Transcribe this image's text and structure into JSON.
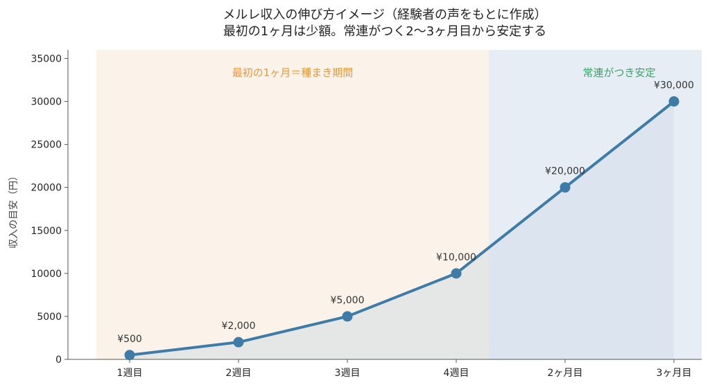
{
  "chart_data": {
    "type": "line",
    "title_line1": "メルレ収入の伸び方イメージ（経験者の声をもとに作成）",
    "title_line2": "最初の1ヶ月は少額。常連がつく2〜3ヶ月目から安定する",
    "ylabel": "収入の目安（円）",
    "categories": [
      "1週目",
      "2週目",
      "3週目",
      "4週目",
      "2ヶ月目",
      "3ヶ月目"
    ],
    "values": [
      500,
      2000,
      5000,
      10000,
      20000,
      30000
    ],
    "data_labels": [
      "¥500",
      "¥2,000",
      "¥5,000",
      "¥10,000",
      "¥20,000",
      "¥30,000"
    ],
    "ylim": [
      0,
      36000
    ],
    "yticks": [
      0,
      5000,
      10000,
      15000,
      20000,
      25000,
      30000,
      35000
    ],
    "annotations": {
      "seed_period": "最初の1ヶ月＝種まき期間",
      "stable_period": "常連がつき安定"
    },
    "colors": {
      "line": "#3E7BA6",
      "seed_region": "#FBF3EA",
      "stable_region": "#E6EDF5",
      "under_fill_seed": "#E5E7E6",
      "orange_text": "#E8963C",
      "green_text": "#3FA06A"
    }
  }
}
